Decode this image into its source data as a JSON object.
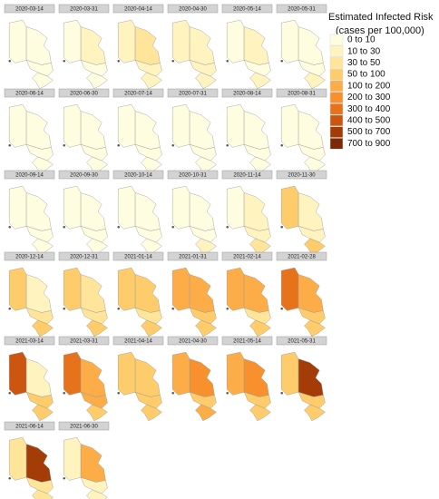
{
  "legend": {
    "title": "Estimated Infected Risk",
    "subtitle": "(cases per 100,000)",
    "items": [
      {
        "label": "0 to 10",
        "color": "#fffde0"
      },
      {
        "label": "10 to 30",
        "color": "#fff3c0"
      },
      {
        "label": "30 to 50",
        "color": "#fee599"
      },
      {
        "label": "50 to 100",
        "color": "#fecc6a"
      },
      {
        "label": "100 to 200",
        "color": "#fdad48"
      },
      {
        "label": "200 to 300",
        "color": "#f7902d"
      },
      {
        "label": "300 to 400",
        "color": "#e6731b"
      },
      {
        "label": "400 to 500",
        "color": "#cc5510"
      },
      {
        "label": "500 to 700",
        "color": "#a43c08"
      },
      {
        "label": "700 to 900",
        "color": "#7a2a06"
      }
    ]
  },
  "panels": [
    {
      "date": "2020-03-14",
      "regions": [
        0,
        0,
        0,
        0
      ]
    },
    {
      "date": "2020-03-31",
      "regions": [
        0,
        1,
        0,
        0
      ]
    },
    {
      "date": "2020-04-14",
      "regions": [
        1,
        2,
        1,
        1
      ]
    },
    {
      "date": "2020-04-30",
      "regions": [
        1,
        1,
        1,
        1
      ]
    },
    {
      "date": "2020-05-14",
      "regions": [
        0,
        1,
        0,
        1
      ]
    },
    {
      "date": "2020-05-31",
      "regions": [
        0,
        0,
        0,
        1
      ]
    },
    {
      "date": "2020-06-14",
      "regions": [
        0,
        0,
        0,
        0
      ]
    },
    {
      "date": "2020-06-30",
      "regions": [
        0,
        0,
        0,
        0
      ]
    },
    {
      "date": "2020-07-14",
      "regions": [
        0,
        0,
        0,
        0
      ]
    },
    {
      "date": "2020-07-31",
      "regions": [
        0,
        0,
        0,
        0
      ]
    },
    {
      "date": "2020-08-14",
      "regions": [
        0,
        0,
        0,
        0
      ]
    },
    {
      "date": "2020-08-31",
      "regions": [
        0,
        0,
        0,
        0
      ]
    },
    {
      "date": "2020-09-14",
      "regions": [
        0,
        0,
        0,
        0
      ]
    },
    {
      "date": "2020-09-30",
      "regions": [
        0,
        0,
        0,
        0
      ]
    },
    {
      "date": "2020-10-14",
      "regions": [
        0,
        0,
        0,
        0
      ]
    },
    {
      "date": "2020-10-31",
      "regions": [
        0,
        0,
        0,
        1
      ]
    },
    {
      "date": "2020-11-14",
      "regions": [
        0,
        1,
        1,
        2
      ]
    },
    {
      "date": "2020-11-30",
      "regions": [
        3,
        1,
        1,
        3
      ]
    },
    {
      "date": "2020-12-14",
      "regions": [
        3,
        1,
        2,
        3
      ]
    },
    {
      "date": "2020-12-31",
      "regions": [
        3,
        2,
        2,
        3
      ]
    },
    {
      "date": "2021-01-14",
      "regions": [
        3,
        3,
        2,
        3
      ]
    },
    {
      "date": "2021-01-31",
      "regions": [
        4,
        4,
        3,
        3
      ]
    },
    {
      "date": "2021-02-14",
      "regions": [
        4,
        4,
        2,
        3
      ]
    },
    {
      "date": "2021-02-28",
      "regions": [
        6,
        4,
        3,
        3
      ]
    },
    {
      "date": "2021-03-14",
      "regions": [
        7,
        1,
        3,
        3
      ]
    },
    {
      "date": "2021-03-31",
      "regions": [
        6,
        4,
        4,
        3
      ]
    },
    {
      "date": "2021-04-14",
      "regions": [
        3,
        3,
        3,
        3
      ]
    },
    {
      "date": "2021-04-30",
      "regions": [
        4,
        5,
        3,
        4
      ]
    },
    {
      "date": "2021-05-14",
      "regions": [
        4,
        5,
        3,
        3
      ]
    },
    {
      "date": "2021-05-31",
      "regions": [
        3,
        8,
        3,
        3
      ]
    },
    {
      "date": "2021-06-14",
      "regions": [
        2,
        8,
        2,
        2
      ]
    },
    {
      "date": "2021-06-30",
      "regions": [
        1,
        4,
        1,
        1
      ]
    }
  ]
}
